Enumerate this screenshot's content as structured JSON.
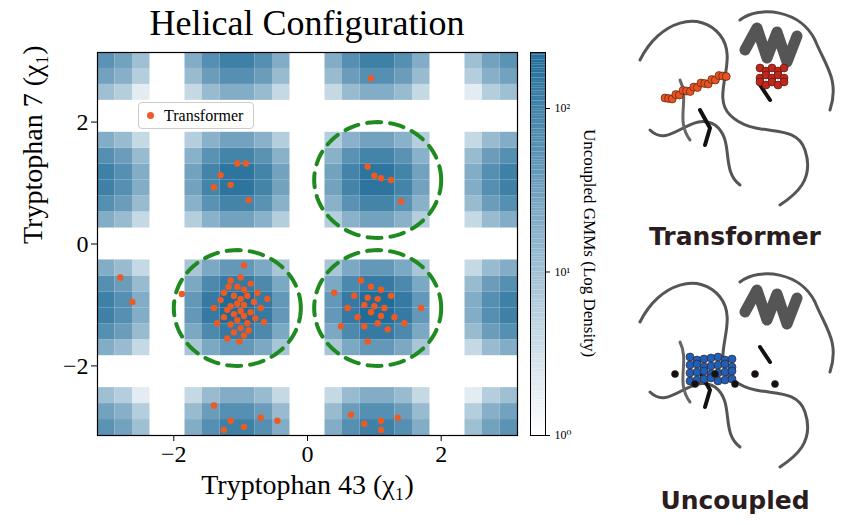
{
  "chart_data": {
    "type": "scatter",
    "title": "Helical Configuration",
    "xlabel": "Tryptophan 43 (χ₁)",
    "ylabel": "Tryptophan 7 (χ₁)",
    "xlim": [
      -3.1416,
      3.1416
    ],
    "ylim": [
      -3.1416,
      3.1416
    ],
    "xticks": [
      {
        "value": -2,
        "label": "−2"
      },
      0,
      2
    ],
    "yticks": [
      {
        "value": -2,
        "label": "−2"
      },
      0,
      2
    ],
    "legend": "upper left",
    "series": [
      {
        "name": "Transformer",
        "color": "#ee5a24",
        "marker": "circle",
        "x": [
          -1.05,
          -0.92,
          -1.3,
          -1.4,
          -1.15,
          -0.88,
          0.9,
          1.0,
          1.1,
          1.25,
          1.4,
          0.95,
          -2.8,
          -2.62,
          -1.88,
          -0.95,
          -1.0,
          -1.15,
          -0.85,
          -1.05,
          -0.95,
          -1.25,
          -0.75,
          -1.1,
          -0.9,
          -1.0,
          -1.3,
          -0.8,
          -1.05,
          -0.95,
          -1.15,
          -0.7,
          -1.2,
          -1.0,
          -0.85,
          -1.1,
          -0.95,
          -1.25,
          -0.78,
          -1.05,
          -0.9,
          -1.15,
          -1.0,
          -1.35,
          -0.65,
          -1.1,
          -0.95,
          -1.2,
          -1.02,
          -0.88,
          -1.4,
          -0.6,
          -1.18,
          0.8,
          0.95,
          1.1,
          0.7,
          0.9,
          1.05,
          1.25,
          0.85,
          1.0,
          1.15,
          0.6,
          0.95,
          1.1,
          0.75,
          1.3,
          0.5,
          0.85,
          1.05,
          1.2,
          1.45,
          0.9,
          1.7,
          0.4,
          -1.4,
          -1.15,
          -0.95,
          -0.7,
          -1.25,
          -0.45,
          0.65,
          0.85,
          1.1,
          1.35,
          1.1
        ],
        "y": [
          1.32,
          1.32,
          1.13,
          0.93,
          0.97,
          0.72,
          1.27,
          1.12,
          1.08,
          1.05,
          0.7,
          2.72,
          -0.55,
          -0.95,
          -0.82,
          -0.35,
          -0.55,
          -0.6,
          -0.65,
          -0.7,
          -0.75,
          -0.8,
          -0.8,
          -0.85,
          -0.85,
          -0.9,
          -0.92,
          -0.95,
          -0.98,
          -1.0,
          -1.02,
          -1.05,
          -1.08,
          -1.1,
          -1.12,
          -1.15,
          -1.18,
          -1.2,
          -1.22,
          -1.25,
          -1.3,
          -1.32,
          -1.38,
          -1.3,
          -1.28,
          -1.45,
          -1.5,
          -1.55,
          -1.6,
          -1.42,
          -1.05,
          -0.9,
          -0.7,
          -0.6,
          -0.7,
          -0.75,
          -0.85,
          -0.88,
          -0.9,
          -0.85,
          -1.0,
          -1.02,
          -1.05,
          -1.05,
          -1.12,
          -1.18,
          -1.2,
          -1.2,
          -1.35,
          -1.35,
          -1.3,
          -1.4,
          -1.3,
          -1.6,
          -1.05,
          -0.8,
          -2.65,
          -2.9,
          -3.0,
          -2.85,
          -3.05,
          -2.9,
          -2.8,
          -2.95,
          -2.9,
          -2.85,
          -3.05
        ]
      }
    ],
    "circles": {
      "color": "#1f8a1f",
      "line_style": "dashed",
      "items": [
        {
          "x": -1.05,
          "y": -1.05,
          "r": 0.95
        },
        {
          "x": 1.05,
          "y": -1.05,
          "r": 0.95
        },
        {
          "x": 1.05,
          "y": 1.05,
          "r": 0.95
        }
      ]
    },
    "heatmap": {
      "color": "#1f6b98",
      "x_bins": [
        -3.1416,
        -2.8798,
        -2.618,
        -2.3562,
        -2.0944,
        -1.8326,
        -1.5708,
        -1.309,
        -1.0472,
        -0.7854,
        -0.5236,
        -0.2618,
        0,
        0.2618,
        0.5236,
        0.7854,
        1.0472,
        1.309,
        1.5708,
        1.8326,
        2.0944,
        2.3562,
        2.618,
        2.8798,
        3.1416
      ],
      "y_bins": [
        -3.1416,
        -2.8798,
        -2.618,
        -2.3562,
        -2.0944,
        -1.8326,
        -1.5708,
        -1.309,
        -1.0472,
        -0.7854,
        -0.5236,
        -0.2618,
        0,
        0.2618,
        0.5236,
        0.7854,
        1.0472,
        1.309,
        1.5708,
        1.8326,
        2.0944,
        2.3562,
        2.618,
        2.8798,
        3.1416
      ],
      "counts": [
        [
          52,
          30,
          10,
          0,
          0,
          20,
          60,
          104,
          104,
          60,
          20,
          0,
          0,
          20,
          60,
          104,
          104,
          60,
          20,
          0,
          0,
          10,
          30,
          52
        ],
        [
          30,
          18,
          6,
          0,
          0,
          12,
          35,
          60,
          60,
          35,
          12,
          0,
          0,
          12,
          35,
          60,
          60,
          35,
          12,
          0,
          0,
          6,
          18,
          30
        ],
        [
          10,
          6,
          2,
          0,
          0,
          4,
          12,
          20,
          20,
          12,
          4,
          0,
          0,
          4,
          12,
          20,
          20,
          12,
          4,
          0,
          0,
          2,
          6,
          10
        ],
        [
          0,
          0,
          0,
          0,
          0,
          0,
          0,
          0,
          0,
          0,
          0,
          0,
          0,
          0,
          0,
          0,
          0,
          0,
          0,
          0,
          0,
          0,
          0,
          0
        ],
        [
          0,
          0,
          0,
          0,
          0,
          0,
          0,
          0,
          0,
          0,
          0,
          0,
          0,
          0,
          0,
          0,
          0,
          0,
          0,
          0,
          0,
          0,
          0,
          0
        ],
        [
          20,
          12,
          4,
          0,
          0,
          8,
          24,
          42,
          42,
          24,
          8,
          0,
          0,
          8,
          24,
          42,
          42,
          24,
          8,
          0,
          0,
          4,
          12,
          20
        ],
        [
          60,
          35,
          12,
          0,
          0,
          24,
          73,
          126,
          126,
          73,
          24,
          0,
          0,
          24,
          73,
          126,
          126,
          73,
          24,
          0,
          0,
          12,
          35,
          60
        ],
        [
          104,
          60,
          20,
          0,
          0,
          42,
          126,
          216,
          216,
          126,
          42,
          0,
          0,
          42,
          126,
          216,
          216,
          126,
          42,
          0,
          0,
          20,
          60,
          104
        ],
        [
          104,
          60,
          20,
          0,
          0,
          42,
          126,
          216,
          216,
          126,
          42,
          0,
          0,
          42,
          126,
          216,
          216,
          126,
          42,
          0,
          0,
          20,
          60,
          104
        ],
        [
          60,
          35,
          12,
          0,
          0,
          24,
          73,
          126,
          126,
          73,
          24,
          0,
          0,
          24,
          73,
          126,
          126,
          73,
          24,
          0,
          0,
          12,
          35,
          60
        ],
        [
          20,
          12,
          4,
          0,
          0,
          8,
          24,
          42,
          42,
          24,
          8,
          0,
          0,
          8,
          24,
          42,
          42,
          24,
          8,
          0,
          0,
          4,
          12,
          20
        ],
        [
          0,
          0,
          0,
          0,
          0,
          0,
          0,
          0,
          0,
          0,
          0,
          0,
          0,
          0,
          0,
          0,
          0,
          0,
          0,
          0,
          0,
          0,
          0,
          0
        ],
        [
          0,
          0,
          0,
          0,
          0,
          0,
          0,
          0,
          0,
          0,
          0,
          0,
          0,
          0,
          0,
          0,
          0,
          0,
          0,
          0,
          0,
          0,
          0,
          0
        ],
        [
          20,
          12,
          4,
          0,
          0,
          6,
          17,
          30,
          30,
          17,
          6,
          0,
          0,
          6,
          17,
          30,
          30,
          17,
          6,
          0,
          0,
          4,
          12,
          20
        ],
        [
          60,
          35,
          12,
          0,
          0,
          17,
          53,
          90,
          90,
          53,
          17,
          0,
          0,
          17,
          53,
          90,
          90,
          53,
          17,
          0,
          0,
          12,
          35,
          60
        ],
        [
          104,
          60,
          20,
          0,
          0,
          30,
          90,
          156,
          156,
          90,
          30,
          0,
          0,
          30,
          90,
          156,
          156,
          90,
          30,
          0,
          0,
          20,
          60,
          104
        ],
        [
          104,
          60,
          20,
          0,
          0,
          30,
          90,
          156,
          156,
          90,
          30,
          0,
          0,
          30,
          90,
          156,
          156,
          90,
          30,
          0,
          0,
          20,
          60,
          104
        ],
        [
          60,
          35,
          12,
          0,
          0,
          17,
          53,
          90,
          90,
          53,
          17,
          0,
          0,
          17,
          53,
          90,
          90,
          53,
          17,
          0,
          0,
          12,
          35,
          60
        ],
        [
          20,
          12,
          4,
          0,
          0,
          6,
          17,
          30,
          30,
          17,
          6,
          0,
          0,
          6,
          17,
          30,
          30,
          17,
          6,
          0,
          0,
          4,
          12,
          20
        ],
        [
          0,
          0,
          0,
          0,
          0,
          0,
          0,
          0,
          0,
          0,
          0,
          0,
          0,
          0,
          0,
          0,
          0,
          0,
          0,
          0,
          0,
          0,
          0,
          0
        ],
        [
          0,
          0,
          0,
          0,
          0,
          0,
          0,
          0,
          0,
          0,
          0,
          0,
          0,
          0,
          0,
          0,
          0,
          0,
          0,
          0,
          0,
          0,
          0,
          0
        ],
        [
          10,
          6,
          2,
          0,
          0,
          4,
          12,
          20,
          20,
          12,
          4,
          0,
          0,
          4,
          12,
          20,
          20,
          12,
          4,
          0,
          0,
          2,
          6,
          10
        ],
        [
          30,
          18,
          6,
          0,
          0,
          12,
          35,
          60,
          60,
          35,
          12,
          0,
          0,
          12,
          35,
          60,
          60,
          35,
          12,
          0,
          0,
          6,
          18,
          30
        ],
        [
          52,
          30,
          10,
          0,
          0,
          20,
          60,
          104,
          104,
          60,
          20,
          0,
          0,
          20,
          60,
          104,
          104,
          60,
          20,
          0,
          0,
          10,
          30,
          52
        ]
      ]
    },
    "colorbar": {
      "label": "Uncoupled GMMs (Log Density)",
      "log": true,
      "range": [
        1,
        220
      ],
      "ticks": [
        {
          "value": 1,
          "label": "10⁰"
        },
        {
          "value": 10,
          "label": "10¹"
        },
        {
          "value": 100,
          "label": "10²"
        }
      ]
    },
    "images": [
      {
        "label": "Transformer"
      },
      {
        "label": "Uncoupled"
      }
    ]
  }
}
